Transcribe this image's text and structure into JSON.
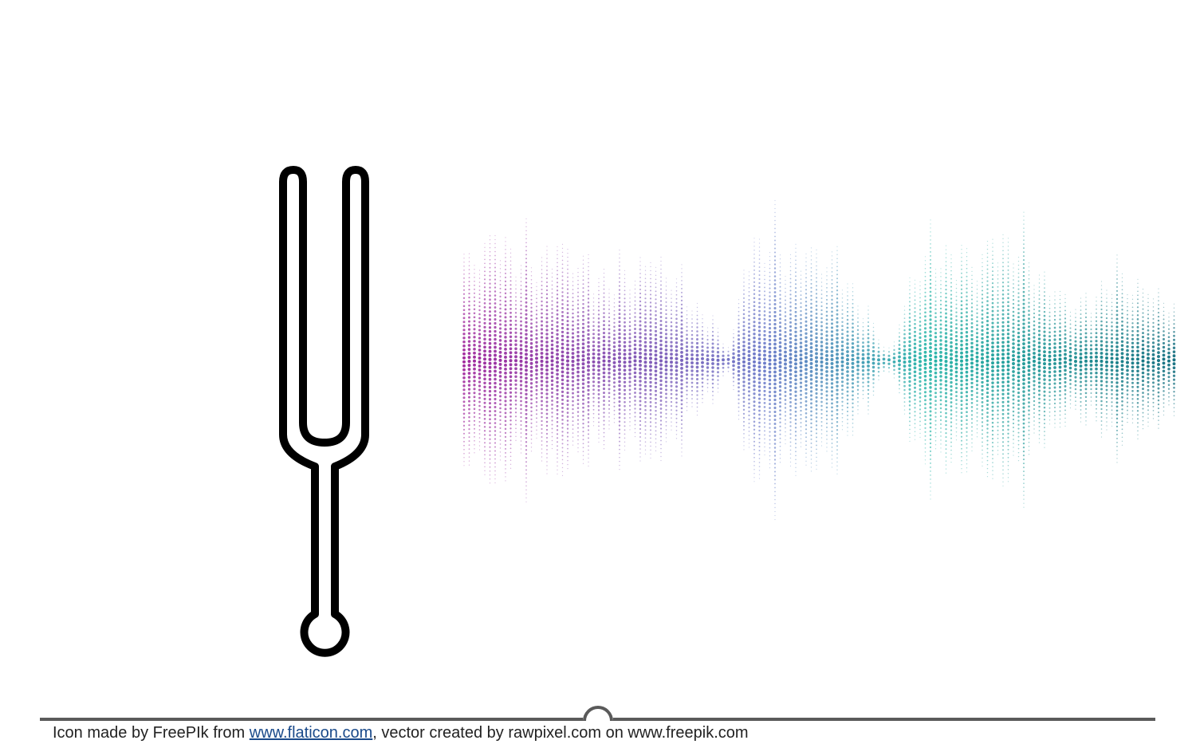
{
  "credit": {
    "part1": "Icon made by FreePIk from ",
    "link1": "www.flaticon.com",
    "part2": ", vector created by rawpixel.com on www.freepik.com"
  },
  "icons": {
    "fork": "tuning-fork-icon",
    "wave": "sound-wave-icon",
    "handle": "timeline-handle-icon"
  },
  "colors": {
    "fork": "#000000",
    "wave_start": "#a0289c",
    "wave_mid": "#6a78c8",
    "wave_teal": "#27b5a8",
    "wave_end": "#146f80",
    "rule": "#5a5a5a"
  }
}
